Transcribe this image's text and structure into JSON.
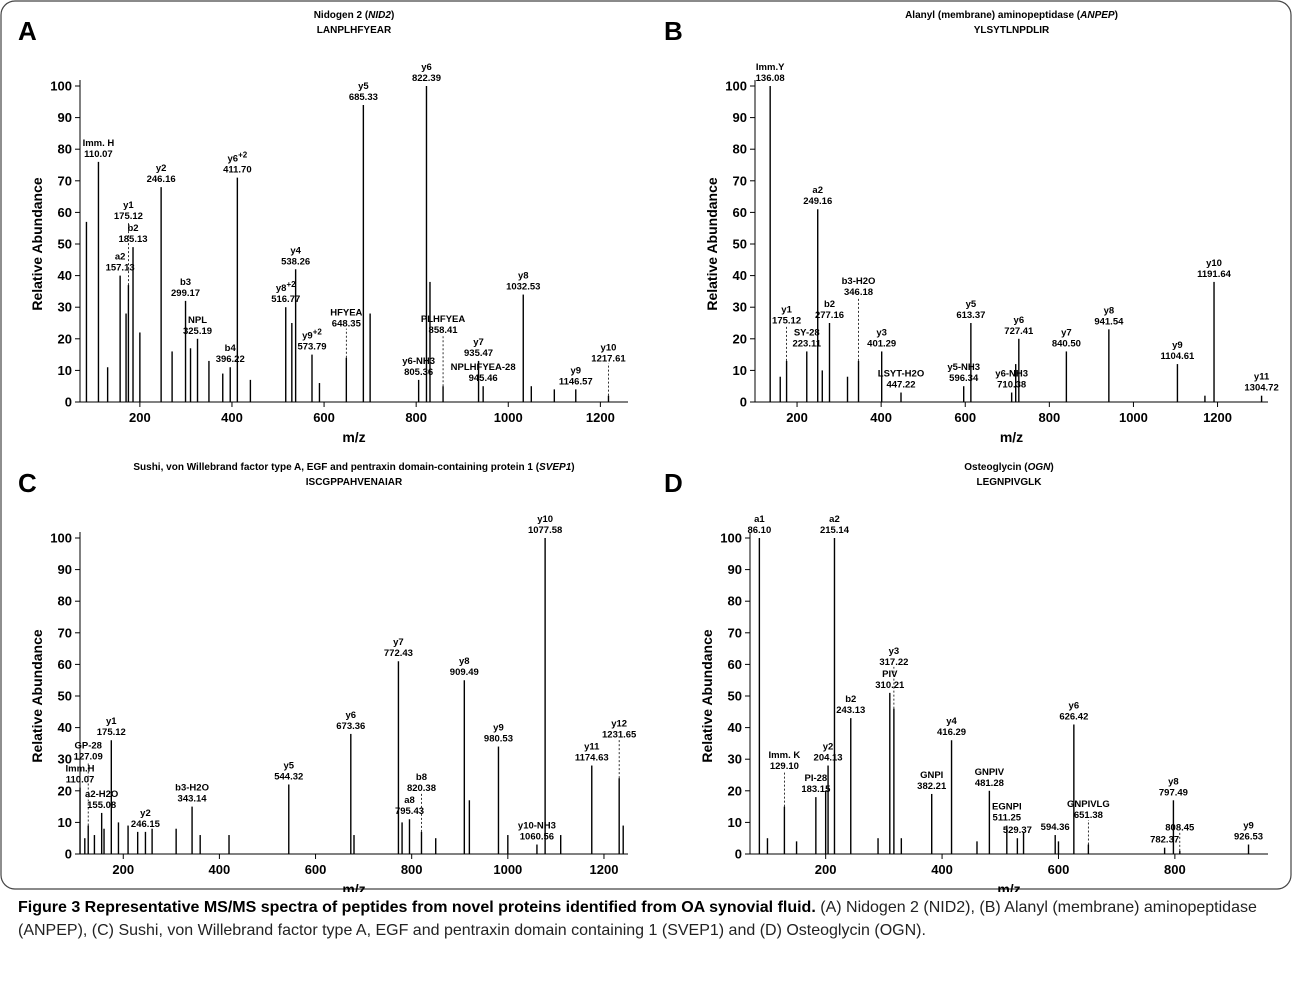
{
  "chart_data": [
    {
      "type": "bar",
      "panel": "A",
      "title": "Nidogen 2 (NID2)",
      "subtitle": "LANPLHFYEAR",
      "xlabel": "m/z",
      "ylabel": "Relative Abundance",
      "xlim": [
        70,
        1260
      ],
      "xticks": [
        200,
        400,
        600,
        800,
        1000,
        1200
      ],
      "ylim": [
        0,
        100
      ],
      "yticks": [
        0,
        10,
        20,
        30,
        40,
        50,
        60,
        70,
        80,
        90,
        100
      ],
      "color": "#000000",
      "x": [
        84,
        110.07,
        130,
        157.13,
        170,
        175.12,
        185.13,
        200,
        246.16,
        270,
        299.17,
        310,
        325.19,
        350,
        380,
        396.22,
        411.7,
        440,
        516.77,
        530,
        538.26,
        573.79,
        590,
        648.35,
        685.33,
        700,
        805.36,
        822.39,
        830,
        858.41,
        935.47,
        945.46,
        1032.53,
        1050,
        1100,
        1146.57,
        1217.61
      ],
      "values": [
        57,
        76,
        11,
        40,
        28,
        37,
        49,
        22,
        68,
        16,
        32,
        17,
        20,
        13,
        9,
        11,
        71,
        7,
        30,
        25,
        42,
        15,
        6,
        14,
        94,
        28,
        7,
        100,
        38,
        5,
        13,
        5,
        34,
        5,
        4,
        4,
        2
      ],
      "labels": [
        null,
        "Imm. H",
        null,
        "a2",
        null,
        "y1",
        "b2",
        null,
        "y2",
        null,
        "b3",
        null,
        "NPL",
        null,
        null,
        "b4",
        "y6+2",
        null,
        "y8+2",
        null,
        "y4",
        "y9+2",
        null,
        "HFYEA",
        "y5",
        null,
        "y6-NH3",
        "y6",
        null,
        "PLHFYEA",
        "y7",
        "NPLHFYEA-28",
        "y8",
        null,
        null,
        "y9",
        "y10"
      ],
      "x_labels": [
        null,
        "110.07",
        null,
        "157.13",
        null,
        "175.12",
        "185.13",
        null,
        "246.16",
        null,
        "299.17",
        null,
        "325.19",
        null,
        null,
        "396.22",
        "411.70",
        null,
        "516.77",
        null,
        "538.26",
        "573.79",
        null,
        "648.35",
        "685.33",
        null,
        "805.36",
        "822.39",
        null,
        "858.41",
        "935.47",
        "945.46",
        "1032.53",
        null,
        null,
        "1146.57",
        "1217.61"
      ]
    },
    {
      "type": "bar",
      "panel": "B",
      "title": "Alanyl (membrane) aminopeptidase (ANPEP)",
      "subtitle": "YLSYTLNPDLIR",
      "xlabel": "m/z",
      "ylabel": "Relative Abundance",
      "xlim": [
        100,
        1320
      ],
      "xticks": [
        200,
        400,
        600,
        800,
        1000,
        1200
      ],
      "ylim": [
        0,
        100
      ],
      "yticks": [
        0,
        10,
        20,
        30,
        40,
        50,
        60,
        70,
        80,
        90,
        100
      ],
      "color": "#000000",
      "x": [
        136.08,
        160,
        175.12,
        223.11,
        249.16,
        260,
        277.16,
        320,
        346.18,
        401.29,
        447.22,
        596.34,
        613.37,
        710.38,
        720,
        727.41,
        840.5,
        941.54,
        1104.61,
        1170,
        1191.64,
        1304.72
      ],
      "values": [
        100,
        8,
        13,
        16,
        61,
        10,
        25,
        8,
        13,
        16,
        3,
        5,
        25,
        3,
        12,
        20,
        16,
        23,
        12,
        2,
        38,
        2
      ],
      "labels": [
        "Imm.Y",
        null,
        "y1",
        "SY-28",
        "a2",
        null,
        "b2",
        null,
        "b3-H2O",
        "y3",
        "LSYT-H2O",
        "y5-NH3",
        "y5",
        "y6-NH3",
        null,
        "y6",
        "y7",
        "y8",
        "y9",
        null,
        "y10",
        "y11"
      ],
      "x_labels": [
        "136.08",
        null,
        "175.12",
        "223.11",
        "249.16",
        null,
        "277.16",
        null,
        "346.18",
        "401.29",
        "447.22",
        "596.34",
        "613.37",
        "710.38",
        null,
        "727.41",
        "840.50",
        "941.54",
        "1104.61",
        null,
        "1191.64",
        "1304.72"
      ]
    },
    {
      "type": "bar",
      "panel": "C",
      "title": "Sushi, von Willebrand factor type A, EGF and pentraxin domain-containing protein 1 (SVEP1)",
      "subtitle": "ISCGPPAHVENAIAR",
      "xlabel": "m/z",
      "ylabel": "Relative Abundance",
      "xlim": [
        110,
        1250
      ],
      "xticks": [
        200,
        400,
        600,
        800,
        1000,
        1200
      ],
      "ylim": [
        0,
        100
      ],
      "yticks": [
        0,
        10,
        20,
        30,
        40,
        50,
        60,
        70,
        80,
        90,
        100
      ],
      "color": "#000000",
      "x": [
        110.07,
        120,
        127.09,
        140,
        155.08,
        160,
        175.12,
        190,
        210,
        230,
        246.15,
        260,
        310,
        343.14,
        360,
        420,
        544.32,
        673.36,
        680,
        772.43,
        780,
        795.43,
        820.38,
        850,
        909.49,
        920,
        980.53,
        1000,
        1060.56,
        1077.58,
        1110,
        1174.63,
        1231.65,
        1240
      ],
      "values": [
        21,
        5,
        9,
        6,
        13,
        8,
        36,
        10,
        9,
        7,
        7,
        8,
        8,
        15,
        6,
        6,
        22,
        38,
        6,
        61,
        10,
        11,
        7,
        5,
        55,
        17,
        34,
        6,
        3,
        100,
        6,
        28,
        24,
        9
      ],
      "labels": [
        "Imm.H",
        null,
        "GP-28",
        null,
        "a2-H2O",
        null,
        "y1",
        null,
        null,
        null,
        "y2",
        null,
        null,
        "b3-H2O",
        null,
        null,
        "y5",
        "y6",
        null,
        "y7",
        null,
        "a8",
        "b8",
        null,
        "y8",
        null,
        "y9",
        null,
        "y10-NH3",
        "y10",
        null,
        "y11",
        "y12",
        null
      ],
      "x_labels": [
        "110.07",
        null,
        "127.09",
        null,
        "155.08",
        null,
        "175.12",
        null,
        null,
        null,
        "246.15",
        null,
        null,
        "343.14",
        null,
        null,
        "544.32",
        "673.36",
        null,
        "772.43",
        null,
        "795.43",
        "820.38",
        null,
        "909.49",
        null,
        "980.53",
        null,
        "1060.56",
        "1077.58",
        null,
        "1174.63",
        "1231.65",
        null
      ]
    },
    {
      "type": "bar",
      "panel": "D",
      "title": "Osteoglycin (OGN)",
      "subtitle": "LEGNPIVGLK",
      "xlabel": "m/z",
      "ylabel": "Relative Abundance",
      "xlim": [
        70,
        960
      ],
      "xticks": [
        200,
        400,
        600,
        800
      ],
      "ylim": [
        0,
        100
      ],
      "yticks": [
        0,
        10,
        20,
        30,
        40,
        50,
        60,
        70,
        80,
        90,
        100
      ],
      "color": "#000000",
      "x": [
        86.1,
        100,
        129.1,
        150,
        183.15,
        200,
        204.13,
        215.14,
        243.13,
        290,
        310.21,
        317.22,
        330,
        382.21,
        416.29,
        460,
        481.28,
        511.25,
        529.37,
        540,
        594.36,
        600,
        626.42,
        651.38,
        782.37,
        797.49,
        808.45,
        926.53
      ],
      "values": [
        100,
        5,
        15,
        4,
        18,
        20,
        28,
        100,
        43,
        5,
        51,
        46,
        5,
        19,
        36,
        4,
        20,
        9,
        5,
        7,
        6,
        4,
        41,
        3,
        2,
        17,
        1,
        3
      ],
      "labels": [
        "a1",
        null,
        "Imm. K",
        null,
        "PI-28",
        null,
        "y2",
        "a2",
        "b2",
        null,
        "PIV",
        "y3",
        null,
        "GNPI",
        "y4",
        null,
        "GNPIV",
        "EGNPI",
        null,
        null,
        null,
        null,
        "y6",
        "GNPIVLG",
        null,
        "y8",
        null,
        "y9"
      ],
      "x_labels": [
        "86.10",
        null,
        "129.10",
        null,
        "183.15",
        null,
        "204.13",
        "215.14",
        "243.13",
        null,
        "310.21",
        "317.22",
        null,
        "382.21",
        "416.29",
        null,
        "481.28",
        "511.25",
        "529.37",
        null,
        "594.36",
        null,
        "626.42",
        "651.38",
        "782.37",
        "797.49",
        "808.45",
        "926.53"
      ]
    }
  ],
  "caption": {
    "title": "Figure 3 Representative MS/MS spectra of peptides from novel proteins identified from OA synovial fluid.",
    "body": "(A) Nidogen 2 (NID2), (B) Alanyl (membrane) aminopeptidase (ANPEP), (C) Sushi, von Willebrand factor type A, EGF and pentraxin domain containing 1 (SVEP1) and (D) Osteoglycin (OGN)."
  }
}
